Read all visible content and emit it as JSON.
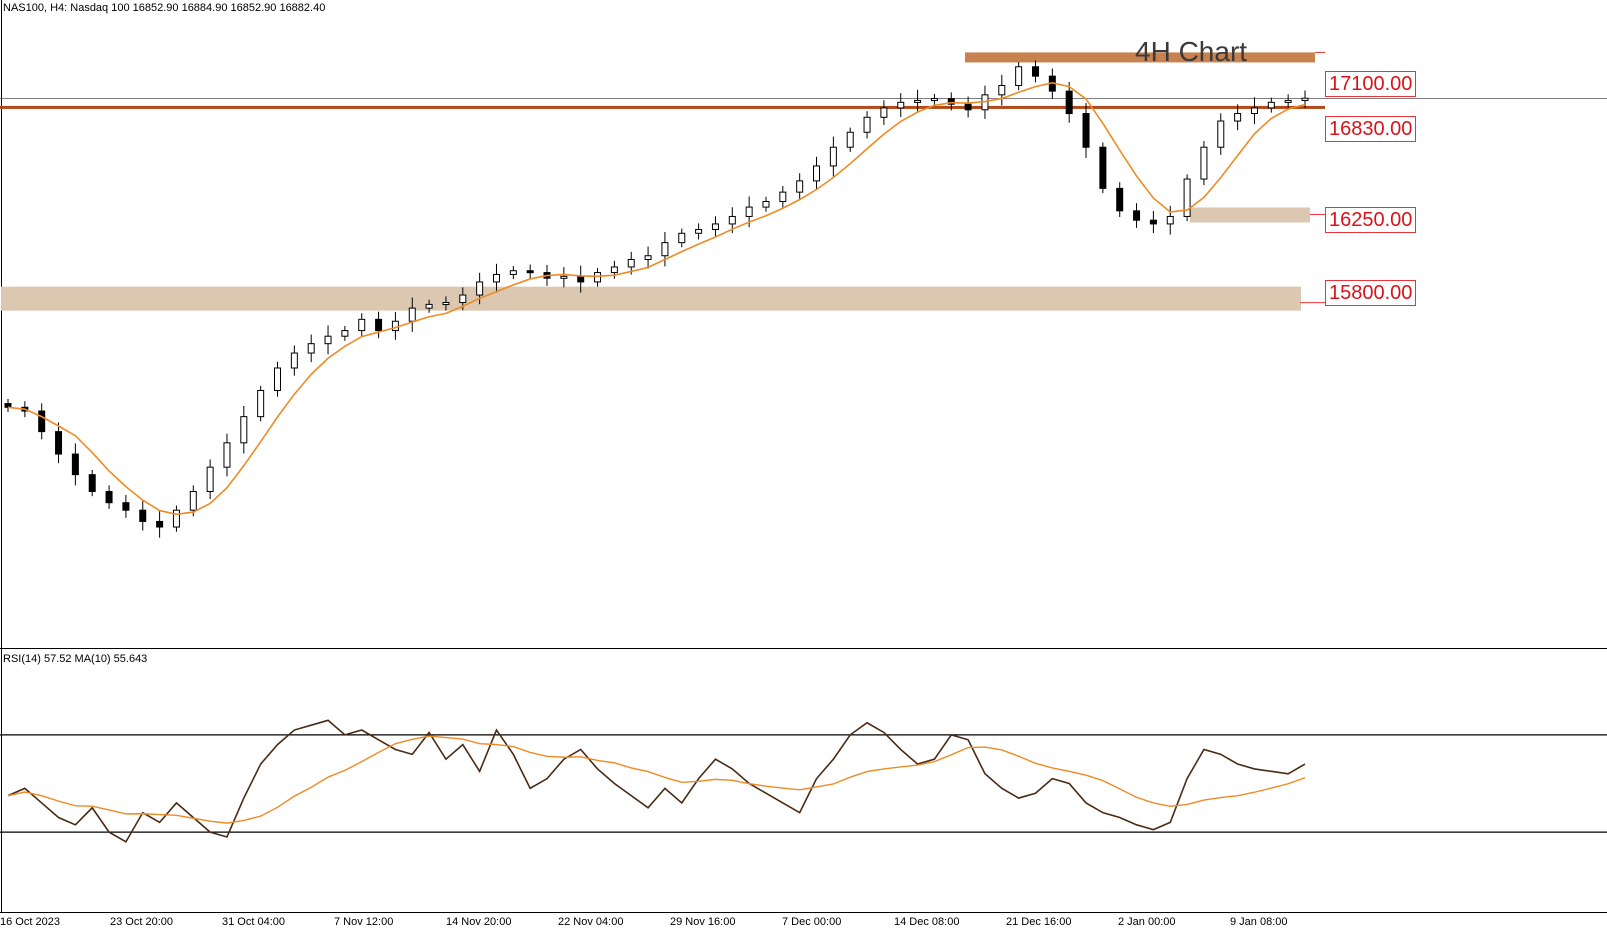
{
  "header": {
    "symbol_line": "NAS100, H4:  Nasdaq 100  16852.90 16884.90 16852.90 16882.40",
    "indicator_line": "RSI(14) 57.52 MA(10) 55.643"
  },
  "title": "4H Chart",
  "levels": [
    {
      "label": "17100.00",
      "value": 17100,
      "kind": "resistance-zone",
      "color": "#c8824f"
    },
    {
      "label": "16830.00",
      "value": 16830,
      "kind": "line",
      "color": "#b24a1c"
    },
    {
      "label": "16250.00",
      "value": 16250,
      "kind": "support-zone",
      "color": "#dcc8b0"
    },
    {
      "label": "15800.00",
      "value": 15800,
      "kind": "support-zone",
      "color": "#dcc8b0"
    }
  ],
  "x_ticks": [
    "16 Oct 2023",
    "23 Oct 20:00",
    "31 Oct 04:00",
    "7 Nov 12:00",
    "14 Nov 20:00",
    "22 Nov 04:00",
    "29 Nov 16:00",
    "7 Dec 00:00",
    "14 Dec 08:00",
    "21 Dec 16:00",
    "2 Jan 00:00",
    "9 Jan 08:00"
  ],
  "chart_data": {
    "type": "line",
    "title": "4H Chart",
    "series": [
      {
        "name": "NAS100 H4",
        "style": "candlestick",
        "color": "#000000",
        "close": [
          15230,
          15210,
          15100,
          14980,
          14870,
          14780,
          14720,
          14680,
          14620,
          14590,
          14680,
          14780,
          14910,
          15040,
          15180,
          15320,
          15440,
          15520,
          15570,
          15610,
          15640,
          15700,
          15640,
          15690,
          15760,
          15780,
          15790,
          15830,
          15900,
          15940,
          15960,
          15950,
          15920,
          15930,
          15900,
          15950,
          15980,
          16020,
          16040,
          16110,
          16160,
          16180,
          16210,
          16250,
          16300,
          16330,
          16380,
          16440,
          16520,
          16620,
          16700,
          16780,
          16830,
          16860,
          16870,
          16880,
          16850,
          16820,
          16900,
          16950,
          17050,
          17000,
          16920,
          16800,
          16620,
          16400,
          16280,
          16230,
          16210,
          16250,
          16450,
          16620,
          16760,
          16800,
          16830,
          16860,
          16870,
          16882
        ]
      },
      {
        "name": "MA",
        "color": "#f08a24"
      }
    ],
    "ylim": [
      14200,
      17300
    ]
  },
  "rsi_data": {
    "type": "line",
    "levels": [
      70,
      30
    ],
    "ylim": [
      0,
      100
    ],
    "series": [
      {
        "name": "RSI(14)",
        "color": "#4a2a14"
      },
      {
        "name": "MA(10)",
        "color": "#f08a24"
      }
    ],
    "values": [
      45,
      48,
      42,
      36,
      33,
      40,
      30,
      26,
      38,
      34,
      42,
      36,
      30,
      28,
      44,
      58,
      66,
      72,
      74,
      76,
      70,
      72,
      68,
      64,
      62,
      71,
      60,
      66,
      55,
      72,
      62,
      48,
      52,
      60,
      64,
      56,
      50,
      45,
      40,
      48,
      42,
      52,
      60,
      56,
      50,
      46,
      42,
      38,
      52,
      60,
      70,
      75,
      71,
      64,
      58,
      60,
      70,
      68,
      54,
      48,
      44,
      46,
      52,
      50,
      42,
      38,
      36,
      33,
      31,
      34,
      52,
      64,
      62,
      58,
      56,
      55,
      54,
      58
    ]
  },
  "colors": {
    "axis": "#000000",
    "candle": "#000000",
    "ma": "#f08a24",
    "rsi": "#4a2a14",
    "level_text": "#d7141a",
    "level_border": "#e8333a"
  }
}
